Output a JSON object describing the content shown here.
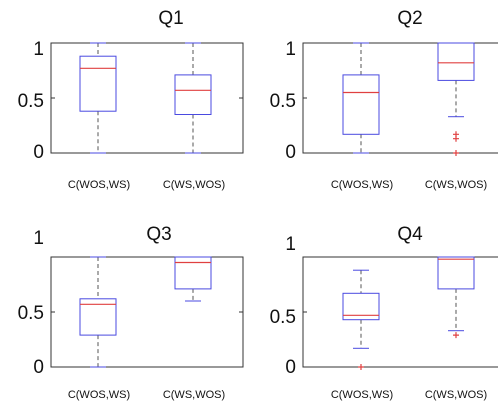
{
  "colors": {
    "box": "#4a4ae0",
    "median": "#e04040",
    "whisker": "#555555",
    "outlier": "#e04040",
    "axes": "#333333"
  },
  "chart_data": [
    {
      "type": "box",
      "title": "Q1",
      "ylim": [
        0,
        1
      ],
      "yticks": [
        "0",
        "0.5",
        "1"
      ],
      "categories": [
        "C(WOS,WS)",
        "C(WS,WOS)"
      ],
      "boxes": [
        {
          "min": 0.0,
          "q1": 0.38,
          "median": 0.77,
          "q3": 0.88,
          "max": 1.0,
          "outliers": []
        },
        {
          "min": 0.0,
          "q1": 0.35,
          "median": 0.57,
          "q3": 0.71,
          "max": 1.0,
          "outliers": []
        }
      ]
    },
    {
      "type": "box",
      "title": "Q2",
      "ylim": [
        0,
        1
      ],
      "yticks": [
        "0",
        "0.5",
        "1"
      ],
      "categories": [
        "C(WOS,WS)",
        "C(WS,WOS)"
      ],
      "boxes": [
        {
          "min": 0.0,
          "q1": 0.17,
          "median": 0.55,
          "q3": 0.71,
          "max": 1.0,
          "outliers": []
        },
        {
          "min": 0.33,
          "q1": 0.66,
          "median": 0.82,
          "q3": 1.0,
          "max": 1.0,
          "outliers": [
            0.0,
            0.13,
            0.17
          ]
        }
      ]
    },
    {
      "type": "box",
      "title": "Q3",
      "ylim": [
        0,
        1
      ],
      "yticks": [
        "0",
        "0.5",
        "1"
      ],
      "categories": [
        "C(WOS,WS)",
        "C(WS,WOS)"
      ],
      "boxes": [
        {
          "min": 0.0,
          "q1": 0.29,
          "median": 0.57,
          "q3": 0.62,
          "max": 1.0,
          "outliers": []
        },
        {
          "min": 0.6,
          "q1": 0.71,
          "median": 0.95,
          "q3": 1.0,
          "max": 1.0,
          "outliers": []
        }
      ]
    },
    {
      "type": "box",
      "title": "Q4",
      "ylim": [
        0,
        1
      ],
      "yticks": [
        "0",
        "0.5",
        "1"
      ],
      "categories": [
        "C(WOS,WS)",
        "C(WS,WOS)"
      ],
      "boxes": [
        {
          "min": 0.17,
          "q1": 0.43,
          "median": 0.47,
          "q3": 0.67,
          "max": 0.88,
          "outliers": [
            0.0
          ]
        },
        {
          "min": 0.33,
          "q1": 0.71,
          "median": 0.98,
          "q3": 1.0,
          "max": 1.0,
          "outliers": [
            0.29
          ]
        }
      ]
    }
  ]
}
